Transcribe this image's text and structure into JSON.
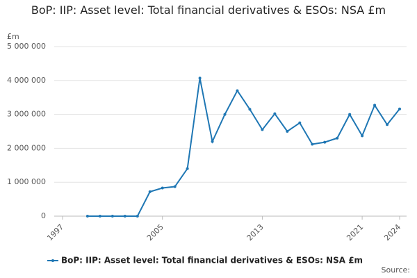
{
  "chart_data": {
    "type": "line",
    "title": "BoP: IIP: Asset level: Total financial derivatives & ESOs: NSA £m",
    "y_unit": "£m",
    "source": "Source:",
    "x": [
      1999,
      2000,
      2001,
      2002,
      2003,
      2004,
      2005,
      2006,
      2007,
      2008,
      2009,
      2010,
      2011,
      2012,
      2013,
      2014,
      2015,
      2016,
      2017,
      2018,
      2019,
      2020,
      2021,
      2022,
      2023,
      2024
    ],
    "series": [
      {
        "name": "BoP: IIP: Asset level: Total financial derivatives & ESOs: NSA £m",
        "color": "#1f77b4",
        "values": [
          0,
          0,
          0,
          0,
          0,
          720000,
          830000,
          870000,
          1400000,
          4070000,
          2200000,
          3000000,
          3700000,
          3150000,
          2550000,
          3020000,
          2500000,
          2750000,
          2120000,
          2180000,
          2300000,
          3000000,
          2370000,
          3270000,
          2700000,
          3160000
        ]
      }
    ],
    "xlim": [
      1997,
      2024
    ],
    "xticks": [
      1997,
      2005,
      2013,
      2021,
      2024
    ],
    "ylim": [
      0,
      5000000
    ],
    "yticks": [
      0,
      {
        "value": 1000000,
        "label": "1 000 000"
      },
      {
        "value": 2000000,
        "label": "2 000 000"
      },
      {
        "value": 3000000,
        "label": "3 000 000"
      },
      {
        "value": 4000000,
        "label": "4 000 000"
      },
      {
        "value": 5000000,
        "label": "5 000 000"
      }
    ],
    "grid": true,
    "legend": "bottom"
  }
}
